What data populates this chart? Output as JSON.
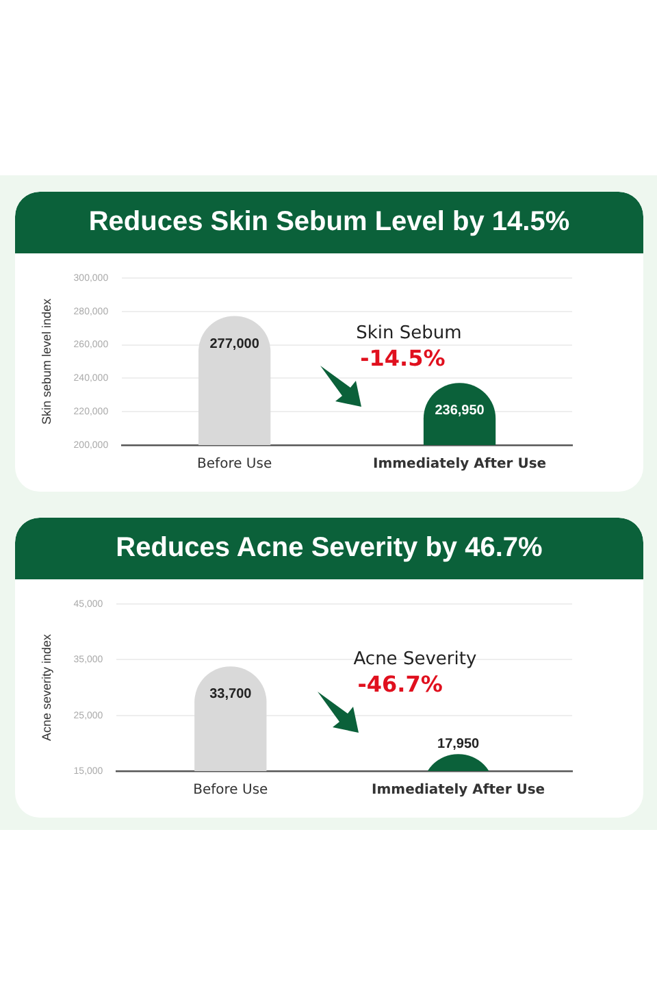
{
  "chart_data": [
    {
      "type": "bar",
      "title": "Reduces Skin Sebum Level by 14.5%",
      "ylabel": "Skin sebum level index",
      "categories": [
        "Before Use",
        "Immediately After Use"
      ],
      "values": [
        277000,
        236950
      ],
      "value_labels": [
        "277,000",
        "236,950"
      ],
      "colors": [
        "#d9d9d9",
        "#0b613a"
      ],
      "ylim": [
        200000,
        300000
      ],
      "yticks": [
        {
          "value": 200000,
          "label": "200,000"
        },
        {
          "value": 220000,
          "label": "220,000"
        },
        {
          "value": 240000,
          "label": "240,000"
        },
        {
          "value": 260000,
          "label": "260,000"
        },
        {
          "value": 280000,
          "label": "280,000"
        },
        {
          "value": 300000,
          "label": "300,000"
        }
      ],
      "grid": "y",
      "annotations": [
        "Skin Sebum",
        "-14.5%"
      ]
    },
    {
      "type": "bar",
      "title": "Reduces Acne Severity by 46.7%",
      "ylabel": "Acne severity index",
      "categories": [
        "Before Use",
        "Immediately After Use"
      ],
      "values": [
        33700,
        17950
      ],
      "value_labels": [
        "33,700",
        "17,950"
      ],
      "colors": [
        "#d9d9d9",
        "#0b613a"
      ],
      "ylim": [
        15000,
        45000
      ],
      "yticks": [
        {
          "value": 15000,
          "label": "15,000"
        },
        {
          "value": 25000,
          "label": "25,000"
        },
        {
          "value": 35000,
          "label": "35,000"
        },
        {
          "value": 45000,
          "label": "45,000"
        }
      ],
      "grid": "y",
      "annotations": [
        "Acne Severity",
        "-46.7%"
      ]
    }
  ]
}
